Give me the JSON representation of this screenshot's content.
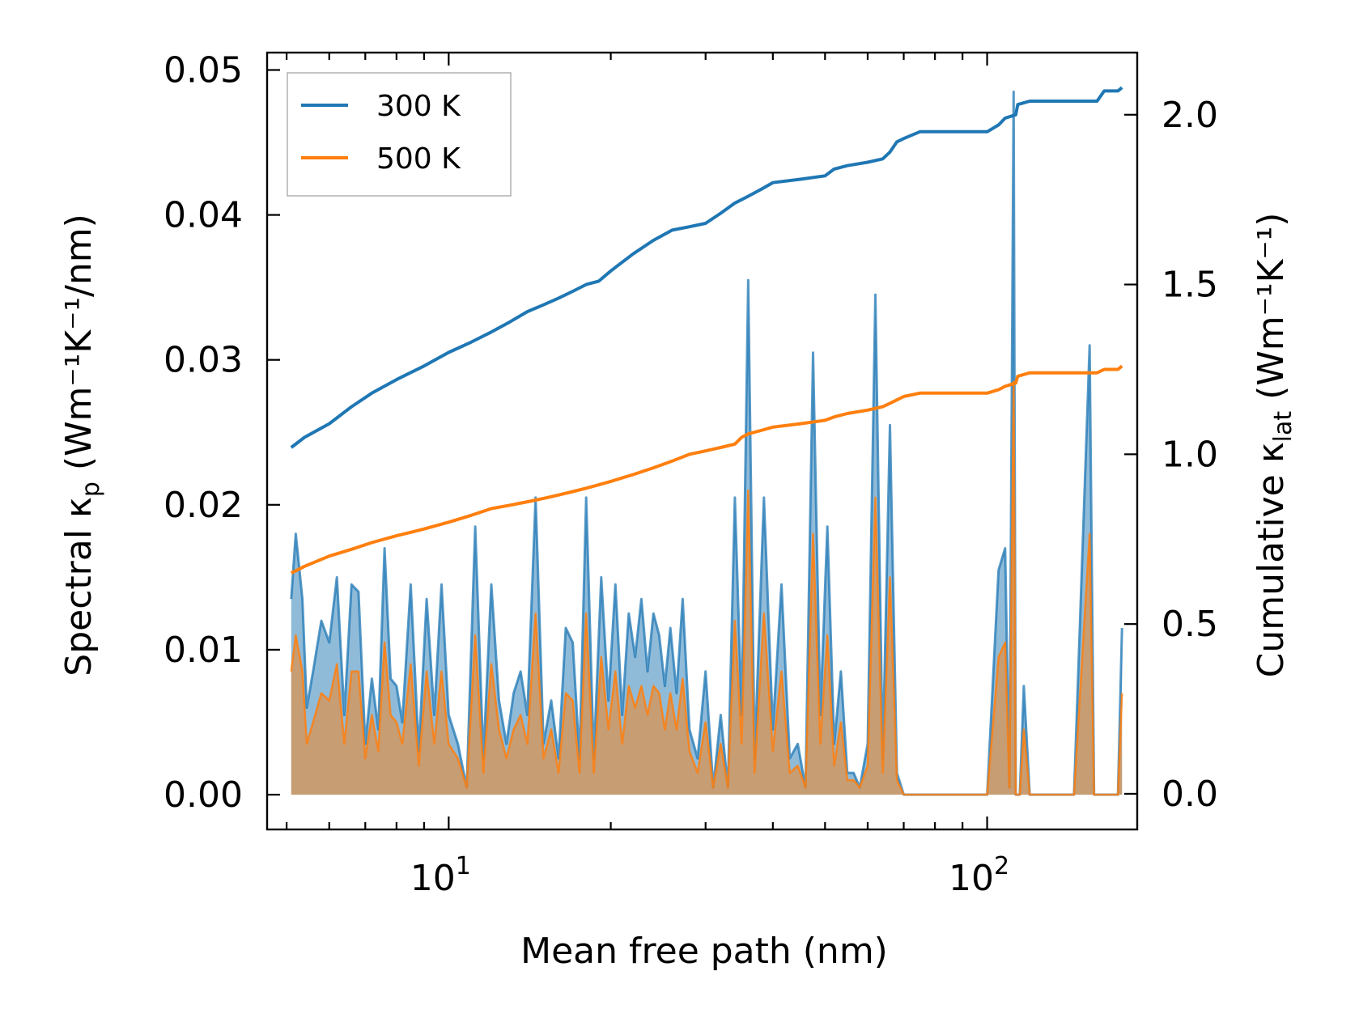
{
  "chart_data": {
    "type": "line",
    "x_scale": "log",
    "xlabel": "Mean free path (nm)",
    "ylabel_left": "Spectral κ",
    "ylabel_left_sub": "p",
    "ylabel_left_unit": "(Wm⁻¹K⁻¹/nm)",
    "ylabel_right": "Cumulative κ",
    "ylabel_right_sub": "lat",
    "ylabel_right_unit": "(Wm⁻¹K⁻¹)",
    "xlim": [
      4.6,
      190
    ],
    "ylim_left": [
      -0.0024,
      0.0512
    ],
    "ylim_right": [
      -0.105,
      2.183
    ],
    "x_ticks": [
      {
        "value": 10,
        "base": "10",
        "exp": "1"
      },
      {
        "value": 100,
        "base": "10",
        "exp": "2"
      }
    ],
    "y_left_ticks": [
      "0.00",
      "0.01",
      "0.02",
      "0.03",
      "0.04",
      "0.05"
    ],
    "y_right_ticks": [
      "0.0",
      "0.5",
      "1.0",
      "1.5",
      "2.0"
    ],
    "legend": [
      "300 K",
      "500 K"
    ],
    "legend_position": "top-left",
    "colors": {
      "300 K": "#1f77b4",
      "500 K": "#ff7f0e"
    },
    "spectral_x": [
      5.1,
      5.2,
      5.35,
      5.45,
      5.6,
      5.8,
      6.0,
      6.2,
      6.4,
      6.6,
      6.8,
      7.0,
      7.2,
      7.4,
      7.6,
      7.8,
      8.0,
      8.2,
      8.5,
      8.8,
      9.1,
      9.4,
      9.7,
      10.0,
      10.4,
      10.8,
      11.2,
      11.6,
      12.0,
      12.4,
      12.8,
      13.2,
      13.6,
      14.0,
      14.5,
      15.0,
      15.5,
      16.0,
      16.5,
      17.0,
      17.5,
      18.0,
      18.6,
      19.2,
      19.8,
      20.4,
      21.0,
      21.6,
      22.2,
      22.8,
      23.4,
      24.0,
      24.6,
      25.2,
      25.8,
      26.5,
      27.2,
      28.0,
      29.0,
      30.0,
      31.0,
      32.0,
      33.0,
      34.0,
      35.0,
      36.0,
      37.0,
      38.5,
      40.0,
      41.5,
      43.0,
      44.5,
      46.0,
      47.5,
      49.0,
      50.5,
      52.0,
      53.5,
      55.0,
      56.5,
      58.0,
      60.0,
      62.0,
      64.0,
      66.0,
      68.0,
      70.0,
      72.0,
      74.0,
      76.0,
      80.0,
      90.0,
      100.0,
      105.0,
      108.0,
      110.0,
      112.0,
      113.0,
      114.0,
      115.0,
      117.0,
      120.0,
      123.0,
      126.0,
      130.0,
      145.0,
      155.0,
      158.0,
      161.0,
      164.0,
      167.0,
      175.0,
      178.0
    ],
    "spectral_300K": [
      0.0135,
      0.018,
      0.0135,
      0.006,
      0.0085,
      0.012,
      0.0105,
      0.015,
      0.0055,
      0.0145,
      0.014,
      0.0035,
      0.008,
      0.0045,
      0.017,
      0.008,
      0.0075,
      0.005,
      0.0145,
      0.003,
      0.0135,
      0.0055,
      0.0145,
      0.0055,
      0.0035,
      0.0005,
      0.0185,
      0.0025,
      0.0145,
      0.0065,
      0.0035,
      0.007,
      0.0085,
      0.0055,
      0.0205,
      0.0035,
      0.0065,
      0.0025,
      0.0115,
      0.0105,
      0.0025,
      0.0205,
      0.0025,
      0.015,
      0.0065,
      0.0145,
      0.0055,
      0.0125,
      0.0095,
      0.0135,
      0.0085,
      0.0125,
      0.011,
      0.0075,
      0.0115,
      0.007,
      0.0135,
      0.0045,
      0.0025,
      0.0085,
      0.0005,
      0.0055,
      0.0005,
      0.0205,
      0.0055,
      0.0355,
      0.0025,
      0.0205,
      0.0045,
      0.0145,
      0.0025,
      0.0035,
      0.0005,
      0.0305,
      0.0055,
      0.0185,
      0.0035,
      0.0085,
      0.0015,
      0.0015,
      0.0005,
      0.0035,
      0.0345,
      0.0025,
      0.0255,
      0.0015,
      0.0,
      0.0,
      0.0,
      0.0,
      0.0,
      0.0,
      0.0,
      0.0155,
      0.017,
      0.0005,
      0.0485,
      0.0,
      0.0,
      0.0,
      0.0075,
      0.0,
      0.0,
      0.0,
      0.0,
      0.0,
      0.031,
      0.0,
      0.0,
      0.0,
      0.0,
      0.0,
      0.0115
    ],
    "spectral_500K": [
      0.0085,
      0.011,
      0.0085,
      0.0035,
      0.005,
      0.007,
      0.0065,
      0.009,
      0.0035,
      0.0085,
      0.0085,
      0.0025,
      0.0055,
      0.003,
      0.0105,
      0.0055,
      0.005,
      0.0035,
      0.009,
      0.002,
      0.0085,
      0.0035,
      0.0085,
      0.0035,
      0.0025,
      0.0005,
      0.011,
      0.0015,
      0.009,
      0.0045,
      0.0025,
      0.0045,
      0.0055,
      0.0035,
      0.0125,
      0.0025,
      0.0045,
      0.0015,
      0.007,
      0.0065,
      0.0015,
      0.0125,
      0.0015,
      0.0095,
      0.0045,
      0.0085,
      0.0035,
      0.0075,
      0.006,
      0.0075,
      0.0055,
      0.0075,
      0.007,
      0.0045,
      0.007,
      0.0045,
      0.008,
      0.003,
      0.0015,
      0.005,
      0.0005,
      0.0035,
      0.0005,
      0.012,
      0.0035,
      0.021,
      0.0015,
      0.0125,
      0.003,
      0.0085,
      0.0015,
      0.002,
      0.0005,
      0.018,
      0.0035,
      0.011,
      0.002,
      0.005,
      0.001,
      0.001,
      0.0005,
      0.002,
      0.0205,
      0.0015,
      0.015,
      0.001,
      0.0,
      0.0,
      0.0,
      0.0,
      0.0,
      0.0,
      0.0,
      0.0095,
      0.0105,
      0.0005,
      0.0285,
      0.0,
      0.0,
      0.0,
      0.0045,
      0.0,
      0.0,
      0.0,
      0.0,
      0.0,
      0.018,
      0.0,
      0.0,
      0.0,
      0.0,
      0.0,
      0.007
    ],
    "cumulative_x": [
      5.1,
      5.4,
      6.0,
      6.6,
      7.2,
      8.0,
      9.0,
      10.0,
      11.0,
      12.0,
      13.0,
      14.0,
      15.0,
      16.0,
      17.0,
      18.0,
      19.0,
      20.0,
      22.0,
      24.0,
      26.0,
      28.0,
      30.0,
      32.0,
      34.0,
      35.0,
      36.0,
      38.0,
      40.0,
      45.0,
      50.0,
      52.0,
      55.0,
      60.0,
      64.0,
      66.0,
      68.0,
      70.0,
      75.0,
      85.0,
      100.0,
      105.0,
      108.0,
      113.0,
      114.0,
      120.0,
      130.0,
      150.0,
      160.0,
      165.0,
      175.0,
      178.0
    ],
    "cumulative_300K": [
      1.02,
      1.05,
      1.09,
      1.14,
      1.18,
      1.22,
      1.26,
      1.3,
      1.33,
      1.36,
      1.39,
      1.42,
      1.44,
      1.46,
      1.48,
      1.5,
      1.51,
      1.54,
      1.59,
      1.63,
      1.66,
      1.67,
      1.68,
      1.71,
      1.74,
      1.75,
      1.76,
      1.78,
      1.8,
      1.81,
      1.82,
      1.84,
      1.85,
      1.86,
      1.87,
      1.89,
      1.92,
      1.93,
      1.95,
      1.95,
      1.95,
      1.97,
      1.99,
      2.0,
      2.03,
      2.04,
      2.04,
      2.04,
      2.04,
      2.07,
      2.07,
      2.08
    ],
    "cumulative_500K": [
      0.65,
      0.67,
      0.7,
      0.72,
      0.74,
      0.76,
      0.78,
      0.8,
      0.82,
      0.84,
      0.85,
      0.86,
      0.87,
      0.88,
      0.89,
      0.9,
      0.91,
      0.92,
      0.94,
      0.96,
      0.98,
      1.0,
      1.01,
      1.02,
      1.03,
      1.05,
      1.06,
      1.07,
      1.08,
      1.09,
      1.1,
      1.11,
      1.12,
      1.13,
      1.14,
      1.15,
      1.16,
      1.17,
      1.18,
      1.18,
      1.18,
      1.19,
      1.2,
      1.21,
      1.23,
      1.24,
      1.24,
      1.24,
      1.24,
      1.25,
      1.25,
      1.26
    ]
  }
}
